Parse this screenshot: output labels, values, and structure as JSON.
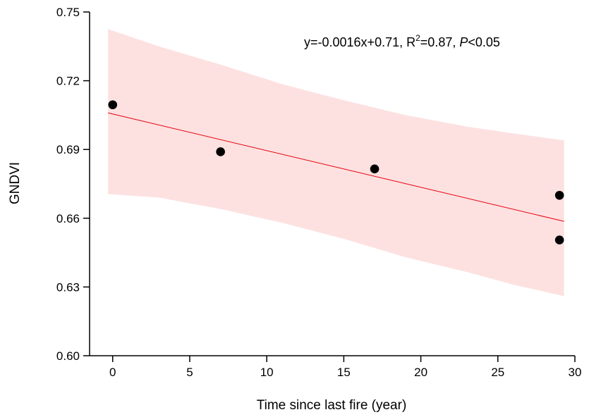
{
  "chart_data": {
    "type": "scatter",
    "xlabel": "Time since last fire  (year)",
    "ylabel": "GNDVI",
    "xlim": [
      -1.5,
      30
    ],
    "ylim": [
      0.6,
      0.75
    ],
    "x_ticks": [
      0,
      5,
      10,
      15,
      20,
      25,
      30
    ],
    "x_tick_labels": [
      "0",
      "5",
      "10",
      "15",
      "20",
      "25",
      "30"
    ],
    "y_ticks": [
      0.6,
      0.63,
      0.66,
      0.69,
      0.72,
      0.75
    ],
    "y_tick_labels": [
      "0.60",
      "0.63",
      "0.66",
      "0.69",
      "0.72",
      "0.75"
    ],
    "grid": false,
    "series": [
      {
        "points": [
          {
            "x": 0,
            "y": 0.7095
          },
          {
            "x": 7,
            "y": 0.689
          },
          {
            "x": 17,
            "y": 0.6815
          },
          {
            "x": 29,
            "y": 0.67
          },
          {
            "x": 29,
            "y": 0.6505
          }
        ],
        "color": "#000000"
      }
    ],
    "fit": {
      "slope": -0.0016,
      "intercept": 0.7055,
      "x_range": [
        -0.3,
        29.3
      ],
      "color": "#e8000b"
    },
    "confidence_band": {
      "color": "#fde1e1",
      "x": [
        -0.3,
        3,
        7,
        11,
        15,
        19,
        23,
        26,
        29.3
      ],
      "upper": [
        0.7425,
        0.735,
        0.727,
        0.7185,
        0.7115,
        0.705,
        0.7,
        0.697,
        0.694
      ],
      "lower": [
        0.6705,
        0.669,
        0.664,
        0.658,
        0.651,
        0.643,
        0.6365,
        0.631,
        0.626
      ]
    },
    "annotation": {
      "eq": "y=-0.0016x+0.71, R",
      "sup": "2",
      "r2_rest": "=0.87, ",
      "p_letter": "P",
      "p_rest": "<0.05"
    }
  }
}
